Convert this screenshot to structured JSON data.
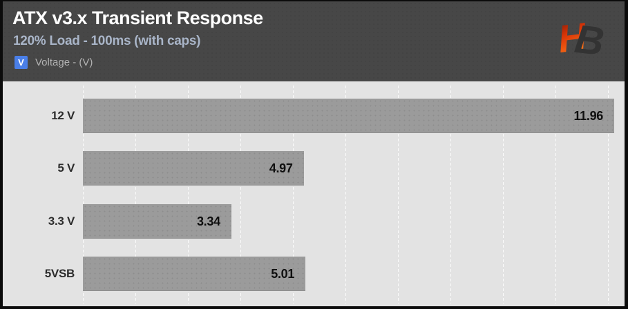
{
  "header": {
    "title": "ATX v3.x Transient Response",
    "subtitle": "120% Load - 100ms (with caps)",
    "legend": {
      "swatch_letter": "V",
      "swatch_color": "#4a7fe8",
      "label": "Voltage - (V)"
    },
    "logo": {
      "letters": "HB",
      "name": "hardware-busters-logo"
    }
  },
  "chart_data": {
    "type": "bar",
    "orientation": "horizontal",
    "title": "ATX v3.x Transient Response",
    "subtitle": "120% Load - 100ms (with caps)",
    "series_label": "Voltage - (V)",
    "categories": [
      "12 V",
      "5 V",
      "3.3 V",
      "5VSB"
    ],
    "values": [
      11.96,
      4.97,
      3.34,
      5.01
    ],
    "value_labels": [
      "11.96",
      "4.97",
      "3.34",
      "5.01"
    ],
    "value_label_position": "inside-end",
    "xlim": [
      0,
      12.1
    ],
    "grid": "vertical-dashed",
    "legend_position": "top-left"
  },
  "colors": {
    "header_bg": "#474747",
    "chart_bg": "#e3e3e3",
    "bar": "#9b9b9b",
    "title_text": "#ffffff",
    "subtitle_text": "#a9b5c8",
    "legend_blue": "#4a7fe8",
    "category_text": "#2d2d2d",
    "value_text": "#0f0f0f",
    "logo_orange": "#ff6a14",
    "logo_dark": "#333333",
    "border": "#0b0b0b"
  }
}
